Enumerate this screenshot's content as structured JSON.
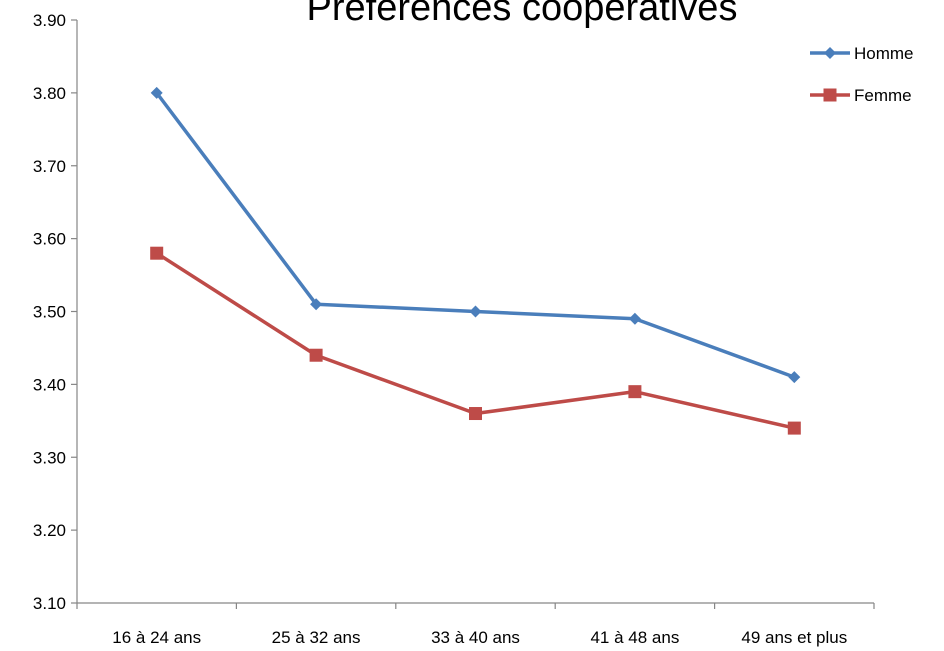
{
  "chart_data": {
    "type": "line",
    "title": "Préférences coopératives",
    "xlabel": "",
    "ylabel": "",
    "categories": [
      "16 à 24 ans",
      "25 à 32 ans",
      "33 à 40 ans",
      "41 à 48 ans",
      "49 ans et plus"
    ],
    "series": [
      {
        "name": "Homme",
        "color": "#4a7ebb",
        "marker": "diamond",
        "values": [
          3.8,
          3.51,
          3.5,
          3.49,
          3.41
        ]
      },
      {
        "name": "Femme",
        "color": "#be4b48",
        "marker": "square",
        "values": [
          3.58,
          3.44,
          3.36,
          3.39,
          3.34
        ]
      }
    ],
    "ylim": [
      3.1,
      3.9
    ],
    "yticks": [
      "3.10",
      "3.20",
      "3.30",
      "3.40",
      "3.50",
      "3.60",
      "3.70",
      "3.80",
      "3.90"
    ],
    "grid": false,
    "legend_position": "top-right"
  }
}
